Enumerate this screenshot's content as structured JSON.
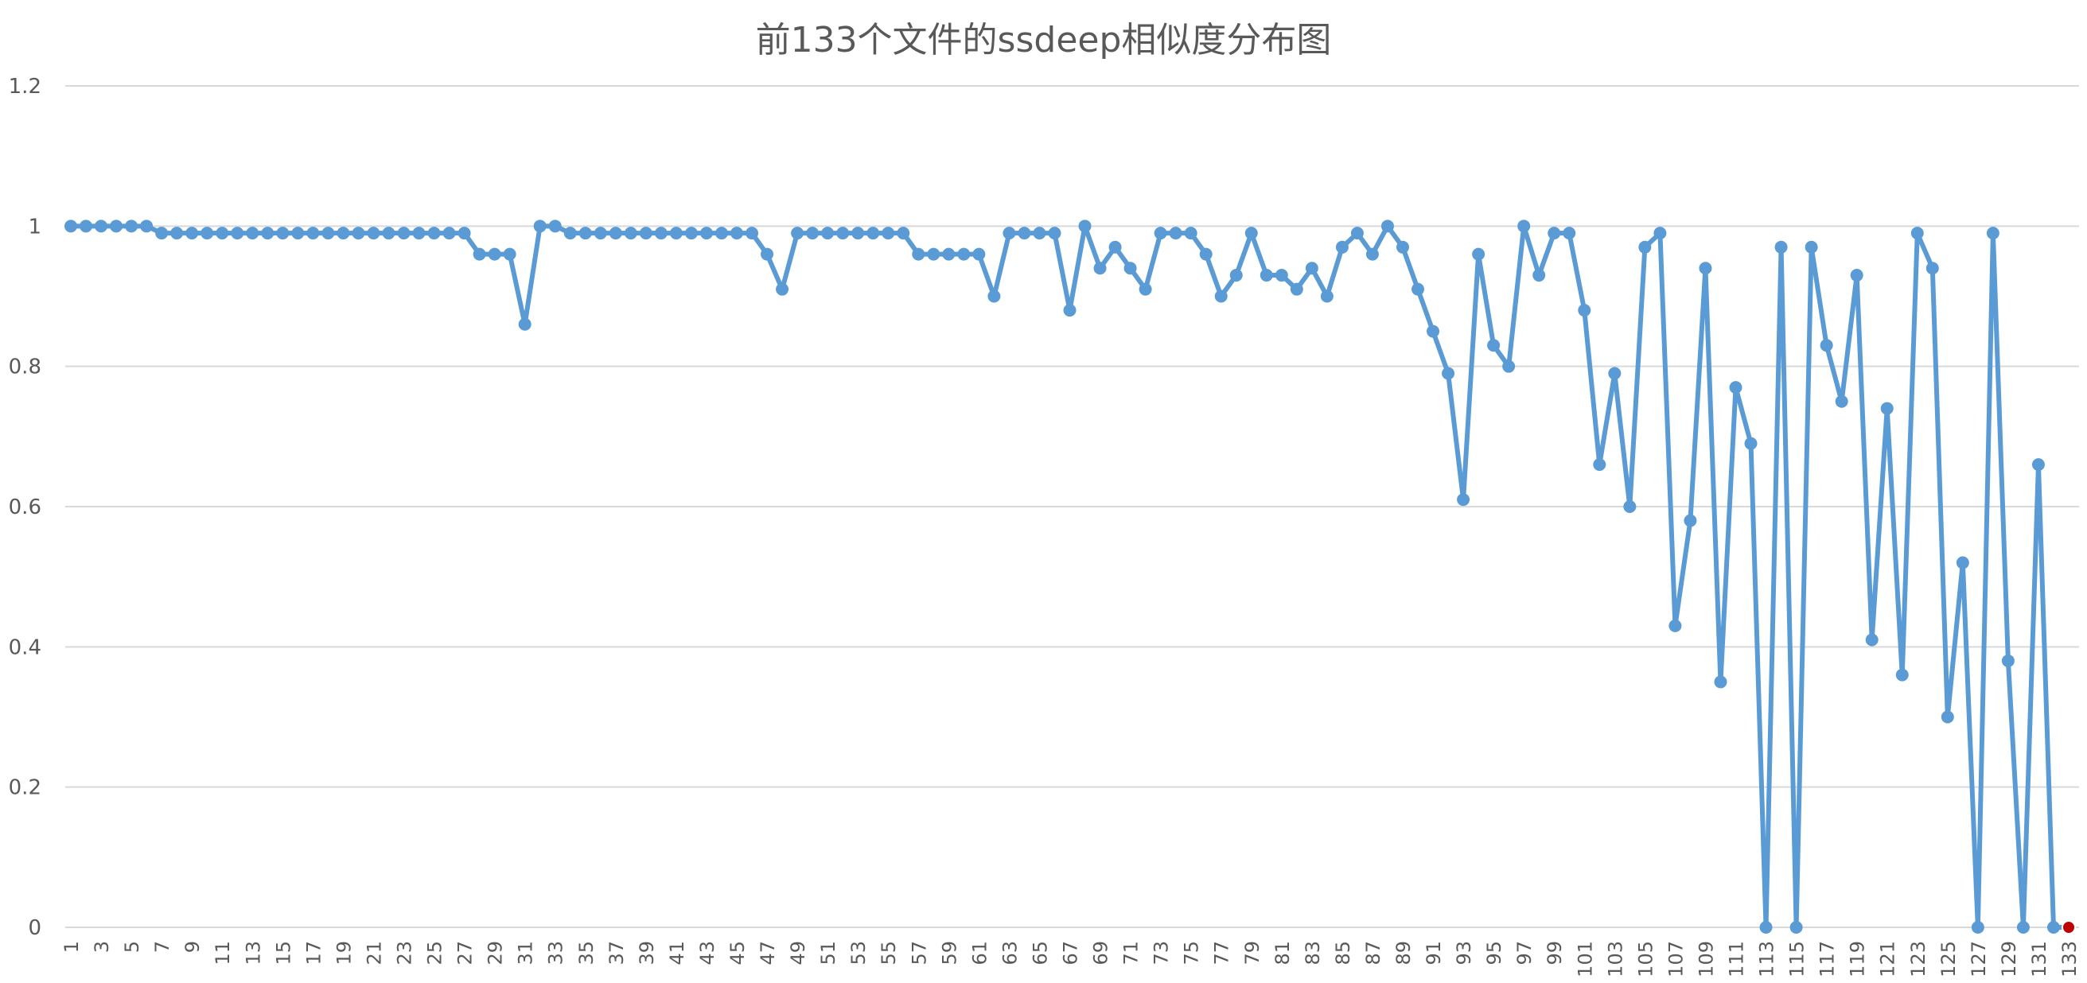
{
  "chart_data": {
    "type": "line",
    "title": "前133个文件的ssdeep相似度分布图",
    "xlabel": "",
    "ylabel": "",
    "ylim": [
      0,
      1.2
    ],
    "yticks": [
      "0",
      "0.2",
      "0.4",
      "0.6",
      "0.8",
      "1",
      "1.2"
    ],
    "y_tick_values": [
      0,
      0.2,
      0.4,
      0.6,
      0.8,
      1,
      1.2
    ],
    "x_tick_step": 2,
    "grid": true,
    "legend": "none",
    "colors": {
      "line": "#5b9bd5",
      "last_point": "#c00000",
      "grid": "#d9d9d9",
      "text": "#595959"
    },
    "x": [
      1,
      2,
      3,
      4,
      5,
      6,
      7,
      8,
      9,
      10,
      11,
      12,
      13,
      14,
      15,
      16,
      17,
      18,
      19,
      20,
      21,
      22,
      23,
      24,
      25,
      26,
      27,
      28,
      29,
      30,
      31,
      32,
      33,
      34,
      35,
      36,
      37,
      38,
      39,
      40,
      41,
      42,
      43,
      44,
      45,
      46,
      47,
      48,
      49,
      50,
      51,
      52,
      53,
      54,
      55,
      56,
      57,
      58,
      59,
      60,
      61,
      62,
      63,
      64,
      65,
      66,
      67,
      68,
      69,
      70,
      71,
      72,
      73,
      74,
      75,
      76,
      77,
      78,
      79,
      80,
      81,
      82,
      83,
      84,
      85,
      86,
      87,
      88,
      89,
      90,
      91,
      92,
      93,
      94,
      95,
      96,
      97,
      98,
      99,
      100,
      101,
      102,
      103,
      104,
      105,
      106,
      107,
      108,
      109,
      110,
      111,
      112,
      113,
      114,
      115,
      116,
      117,
      118,
      119,
      120,
      121,
      122,
      123,
      124,
      125,
      126,
      127,
      128,
      129,
      130,
      131,
      132,
      133
    ],
    "series": [
      {
        "values": [
          1,
          1,
          1,
          1,
          1,
          1,
          0.99,
          0.99,
          0.99,
          0.99,
          0.99,
          0.99,
          0.99,
          0.99,
          0.99,
          0.99,
          0.99,
          0.99,
          0.99,
          0.99,
          0.99,
          0.99,
          0.99,
          0.99,
          0.99,
          0.99,
          0.99,
          0.96,
          0.96,
          0.96,
          0.86,
          1,
          1,
          0.99,
          0.99,
          0.99,
          0.99,
          0.99,
          0.99,
          0.99,
          0.99,
          0.99,
          0.99,
          0.99,
          0.99,
          0.99,
          0.96,
          0.91,
          0.99,
          0.99,
          0.99,
          0.99,
          0.99,
          0.99,
          0.99,
          0.99,
          0.96,
          0.96,
          0.96,
          0.96,
          0.96,
          0.9,
          0.99,
          0.99,
          0.99,
          0.99,
          0.88,
          1,
          0.94,
          0.97,
          0.94,
          0.91,
          0.99,
          0.99,
          0.99,
          0.96,
          0.9,
          0.93,
          0.99,
          0.93,
          0.93,
          0.91,
          0.94,
          0.9,
          0.97,
          0.99,
          0.96,
          1,
          0.97,
          0.91,
          0.85,
          0.79,
          0.61,
          0.96,
          0.83,
          0.8,
          1,
          0.93,
          0.99,
          0.99,
          0.88,
          0.66,
          0.79,
          0.6,
          0.97,
          0.99,
          0.43,
          0.58,
          0.94,
          0.35,
          0.77,
          0.69,
          0,
          0.97,
          0,
          0.97,
          0.83,
          0.75,
          0.93,
          0.41,
          0.74,
          0.36,
          0.99,
          0.94,
          0.3,
          0.52,
          0,
          0.99,
          0.38,
          0,
          0.66,
          0,
          0
        ]
      }
    ]
  }
}
